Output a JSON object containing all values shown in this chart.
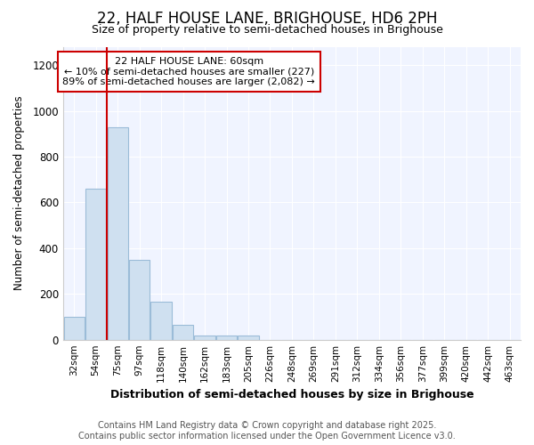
{
  "title": "22, HALF HOUSE LANE, BRIGHOUSE, HD6 2PH",
  "subtitle": "Size of property relative to semi-detached houses in Brighouse",
  "xlabel": "Distribution of semi-detached houses by size in Brighouse",
  "ylabel": "Number of semi-detached properties",
  "categories": [
    "32sqm",
    "54sqm",
    "75sqm",
    "97sqm",
    "118sqm",
    "140sqm",
    "162sqm",
    "183sqm",
    "205sqm",
    "226sqm",
    "248sqm",
    "269sqm",
    "291sqm",
    "312sqm",
    "334sqm",
    "356sqm",
    "377sqm",
    "399sqm",
    "420sqm",
    "442sqm",
    "463sqm"
  ],
  "values": [
    100,
    660,
    930,
    350,
    165,
    65,
    20,
    20,
    20,
    0,
    0,
    0,
    0,
    0,
    0,
    0,
    0,
    0,
    0,
    0,
    0
  ],
  "bar_color": "#cfe0f0",
  "bar_edgecolor": "#9bbcd8",
  "red_line_x": 1.5,
  "annotation_title": "22 HALF HOUSE LANE: 60sqm",
  "annotation_line2": "← 10% of semi-detached houses are smaller (227)",
  "annotation_line3": "89% of semi-detached houses are larger (2,082) →",
  "annotation_color": "#cc0000",
  "ylim": [
    0,
    1280
  ],
  "yticks": [
    0,
    200,
    400,
    600,
    800,
    1000,
    1200
  ],
  "footer1": "Contains HM Land Registry data © Crown copyright and database right 2025.",
  "footer2": "Contains public sector information licensed under the Open Government Licence v3.0.",
  "background_color": "#ffffff",
  "plot_bg_color": "#f0f4ff",
  "grid_color": "#ffffff"
}
